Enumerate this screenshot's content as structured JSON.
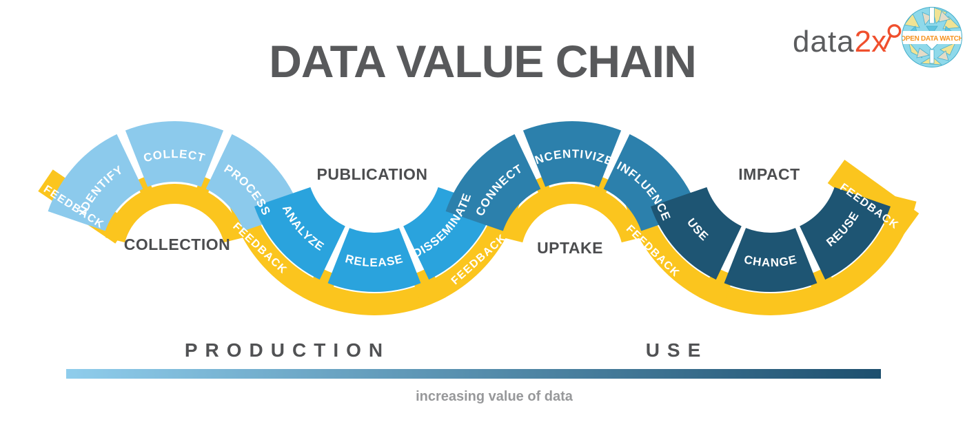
{
  "title": "DATA VALUE CHAIN",
  "logos": {
    "data2x": {
      "gray_part": "data",
      "orange_part": "2x"
    },
    "odw_label": "OPEN DATA WATCH"
  },
  "feedback_label": "FEEDBACK",
  "waves": [
    {
      "stage": "COLLECTION",
      "segments": [
        "IDENTIFY",
        "COLLECT",
        "PROCESS"
      ],
      "color": "#8CCAEC"
    },
    {
      "stage": "PUBLICATION",
      "segments": [
        "ANALYZE",
        "RELEASE",
        "DISSEMINATE"
      ],
      "color": "#2AA3DD"
    },
    {
      "stage": "UPTAKE",
      "segments": [
        "CONNECT",
        "INCENTIVIZE",
        "INFLUENCE"
      ],
      "color": "#2C80AC"
    },
    {
      "stage": "IMPACT",
      "segments": [
        "USE",
        "CHANGE",
        "REUSE"
      ],
      "color": "#1E5573"
    }
  ],
  "footer": {
    "production": "PRODUCTION",
    "use": "USE",
    "caption": "increasing value of data"
  },
  "colors": {
    "ribbon_yellow": "#FBC51E",
    "gradient_start": "#8FCDEC",
    "gradient_end": "#1D4F6E",
    "title_gray": "#58595B",
    "stage_label_gray": "#4C4D4F",
    "caption_gray": "#97989A",
    "data2x_gray": "#5B5C5E",
    "accent_orange": "#F04F2D",
    "odw_orange": "#F5921E"
  }
}
